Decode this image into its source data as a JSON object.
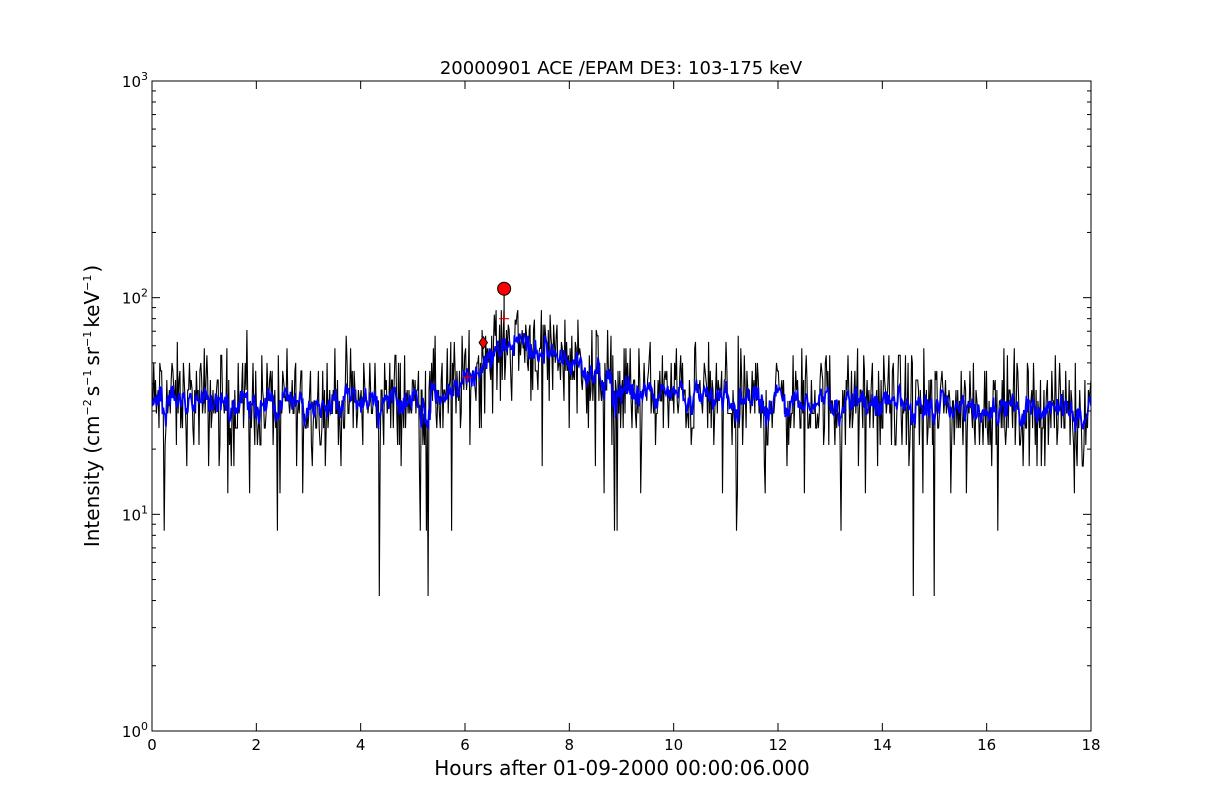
{
  "chart_data": {
    "type": "line",
    "title": "20000901 ACE /EPAM DE3: 103-175 keV",
    "xlabel": "Hours after 01-09-2000 00:00:06.000",
    "ylabel": {
      "prefix": "Intensity (cm",
      "exp1": "−2",
      "mid1": "s",
      "exp2": "−1",
      "mid2": "sr",
      "exp3": "−1",
      "mid3": "keV",
      "exp4": "−1",
      "suffix": ")"
    },
    "x_ticks": [
      "0",
      "2",
      "4",
      "6",
      "8",
      "10",
      "12",
      "14",
      "16",
      "18"
    ],
    "y_ticks": [
      {
        "base": "10",
        "exp": "0"
      },
      {
        "base": "10",
        "exp": "1"
      },
      {
        "base": "10",
        "exp": "2"
      },
      {
        "base": "10",
        "exp": "3"
      }
    ],
    "xlim": [
      0,
      18
    ],
    "ylim": [
      1,
      1000
    ],
    "yscale": "log",
    "grid": false,
    "background_level": 33,
    "noise_floor": 4.2,
    "deep_dips_at_hours": [
      4.35,
      5.3,
      14.6,
      15.0
    ],
    "series": [
      {
        "color": "#000000",
        "style": "line",
        "resolution_hours": 0.0167,
        "knots_x": [
          0,
          2,
          4,
          5.5,
          6.0,
          6.3,
          6.7,
          7.0,
          7.5,
          8.0,
          8.5,
          9.0,
          11,
          13,
          15,
          18
        ],
        "knots_y": [
          33,
          33,
          33,
          34,
          40,
          48,
          60,
          63,
          58,
          52,
          44,
          37,
          34,
          33,
          32,
          30
        ]
      },
      {
        "color": "#0000ff",
        "style": "line",
        "resolution_hours": 0.0167,
        "knots_x": [
          0,
          2,
          4,
          5.5,
          6.0,
          6.3,
          6.7,
          7.0,
          7.5,
          8.0,
          8.5,
          9.0,
          11,
          13,
          15,
          18
        ],
        "knots_y": [
          33,
          33,
          33,
          34,
          40,
          48,
          60,
          63,
          58,
          52,
          44,
          37,
          34,
          33,
          32,
          30
        ]
      }
    ],
    "markers": [
      {
        "x": 6.35,
        "y": 62,
        "shape": "diamond",
        "color": "#ff0000"
      },
      {
        "x": 6.75,
        "y": 110,
        "shape": "circle",
        "color": "#ff0000"
      },
      {
        "x": 6.75,
        "y": 80,
        "shape": "plus",
        "color": "#cc0000"
      },
      {
        "x": 6.05,
        "y": 43,
        "shape": "plus",
        "color": "#cc0000"
      }
    ]
  }
}
